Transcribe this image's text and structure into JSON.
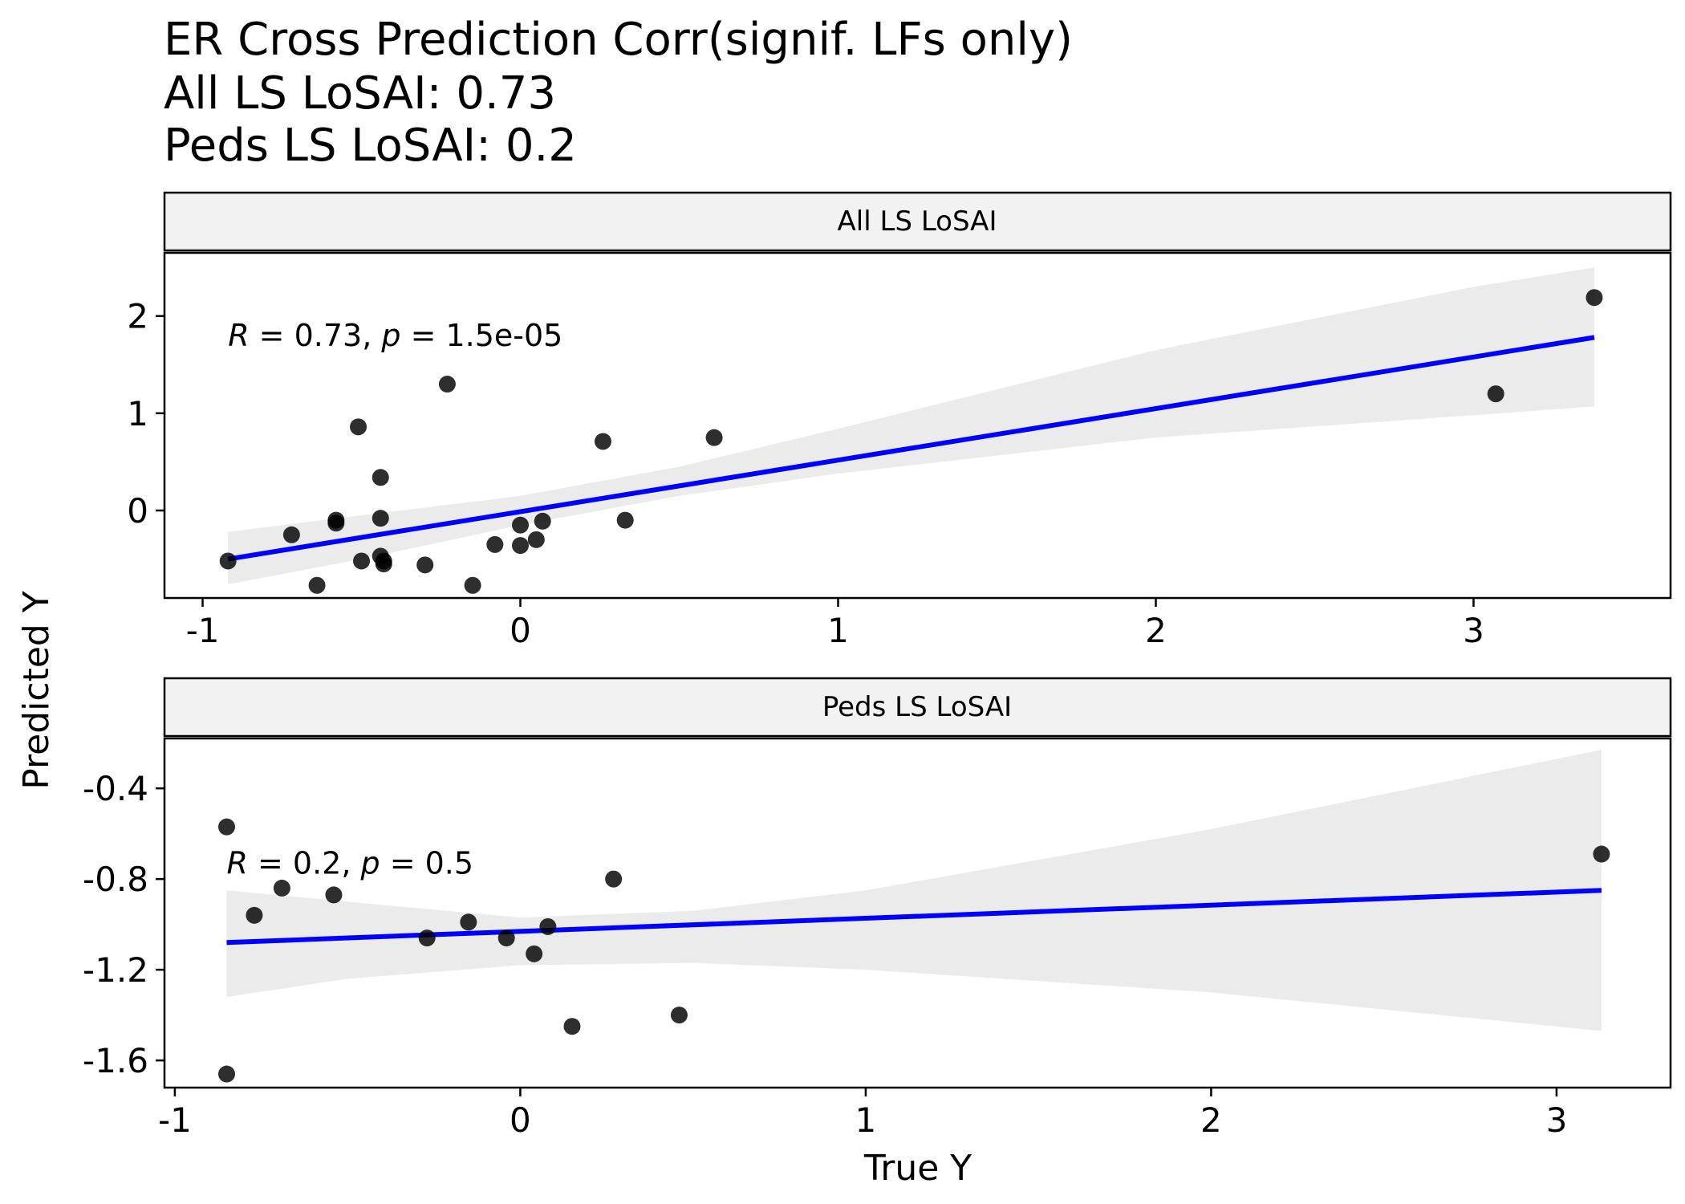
{
  "chart_data": {
    "type": "scatter",
    "title": [
      "ER Cross Prediction Corr(signif. LFs only)",
      "All LS LoSAI: 0.73",
      "Peds LS LoSAI: 0.2"
    ],
    "xlabel": "True Y",
    "ylabel": "Predicted Y",
    "colors": {
      "points": "#000000",
      "points_overlap": "#444444",
      "line": "#0000ff",
      "ribbon": "#ebebeb",
      "strip_fill": "#f2f2f2",
      "frame": "#000000"
    },
    "panels": [
      {
        "strip": "All LS LoSAI",
        "annotation": {
          "R": "0.73",
          "p": "1.5e-05",
          "x": -0.92,
          "y": 1.8
        },
        "xlim": [
          -1.12,
          3.62
        ],
        "ylim": [
          -0.9,
          2.65
        ],
        "xticks": [
          -1,
          0,
          1,
          2,
          3
        ],
        "xtick_labels": [
          "-1",
          "0",
          "1",
          "2",
          "3"
        ],
        "yticks": [
          0,
          1,
          2
        ],
        "ytick_labels": [
          "0",
          "1",
          "2"
        ],
        "points": [
          {
            "x": -0.92,
            "y": -0.52
          },
          {
            "x": -0.72,
            "y": -0.25
          },
          {
            "x": -0.64,
            "y": -0.77
          },
          {
            "x": -0.58,
            "y": -0.1
          },
          {
            "x": -0.58,
            "y": -0.13
          },
          {
            "x": -0.51,
            "y": 0.86
          },
          {
            "x": -0.5,
            "y": -0.52
          },
          {
            "x": -0.44,
            "y": 0.34
          },
          {
            "x": -0.44,
            "y": -0.08
          },
          {
            "x": -0.44,
            "y": -0.47
          },
          {
            "x": -0.43,
            "y": -0.52
          },
          {
            "x": -0.43,
            "y": -0.55
          },
          {
            "x": -0.3,
            "y": -0.56
          },
          {
            "x": -0.23,
            "y": 1.3
          },
          {
            "x": -0.15,
            "y": -0.77
          },
          {
            "x": -0.08,
            "y": -0.35
          },
          {
            "x": 0.0,
            "y": -0.15
          },
          {
            "x": 0.0,
            "y": -0.36
          },
          {
            "x": 0.05,
            "y": -0.3
          },
          {
            "x": 0.07,
            "y": -0.11
          },
          {
            "x": 0.26,
            "y": 0.71
          },
          {
            "x": 0.33,
            "y": -0.1
          },
          {
            "x": 0.61,
            "y": 0.75
          },
          {
            "x": 3.07,
            "y": 1.2
          },
          {
            "x": 3.38,
            "y": 2.19
          }
        ],
        "fit": {
          "x0": -0.92,
          "y0": -0.5,
          "x1": 3.38,
          "y1": 1.78
        },
        "ci_upper": [
          [
            -0.92,
            -0.22
          ],
          [
            -0.5,
            -0.05
          ],
          [
            0.0,
            0.15
          ],
          [
            0.5,
            0.45
          ],
          [
            1.0,
            0.84
          ],
          [
            2.0,
            1.65
          ],
          [
            3.0,
            2.3
          ],
          [
            3.38,
            2.5
          ]
        ],
        "ci_lower": [
          [
            -0.92,
            -0.76
          ],
          [
            -0.5,
            -0.5
          ],
          [
            0.0,
            -0.15
          ],
          [
            0.5,
            0.15
          ],
          [
            1.0,
            0.38
          ],
          [
            2.0,
            0.75
          ],
          [
            3.0,
            0.98
          ],
          [
            3.38,
            1.07
          ]
        ]
      },
      {
        "strip": "Peds LS LoSAI",
        "annotation": {
          "R": "0.2",
          "p": "0.5",
          "x": -0.85,
          "y": -0.73
        },
        "xlim": [
          -1.03,
          3.33
        ],
        "ylim": [
          -1.72,
          -0.18
        ],
        "xticks": [
          -1,
          0,
          1,
          2,
          3
        ],
        "xtick_labels": [
          "-1",
          "0",
          "1",
          "2",
          "3"
        ],
        "yticks": [
          -0.4,
          -0.8,
          -1.2,
          -1.6
        ],
        "ytick_labels": [
          "-0.4",
          "-0.8",
          "-1.2",
          "-1.6"
        ],
        "points": [
          {
            "x": -0.85,
            "y": -0.57
          },
          {
            "x": -0.85,
            "y": -1.66
          },
          {
            "x": -0.77,
            "y": -0.96
          },
          {
            "x": -0.69,
            "y": -0.84
          },
          {
            "x": -0.54,
            "y": -0.87
          },
          {
            "x": -0.27,
            "y": -1.06
          },
          {
            "x": -0.15,
            "y": -0.99
          },
          {
            "x": -0.04,
            "y": -1.06
          },
          {
            "x": 0.04,
            "y": -1.13
          },
          {
            "x": 0.08,
            "y": -1.01
          },
          {
            "x": 0.15,
            "y": -1.45
          },
          {
            "x": 0.27,
            "y": -0.8
          },
          {
            "x": 0.46,
            "y": -1.4
          },
          {
            "x": 3.13,
            "y": -0.69
          }
        ],
        "fit": {
          "x0": -0.85,
          "y0": -1.08,
          "x1": 3.13,
          "y1": -0.85
        },
        "ci_upper": [
          [
            -0.85,
            -0.85
          ],
          [
            -0.5,
            -0.9
          ],
          [
            0.0,
            -0.97
          ],
          [
            0.5,
            -0.94
          ],
          [
            1.0,
            -0.85
          ],
          [
            2.0,
            -0.58
          ],
          [
            3.13,
            -0.23
          ]
        ],
        "ci_lower": [
          [
            -0.85,
            -1.32
          ],
          [
            -0.5,
            -1.24
          ],
          [
            0.0,
            -1.18
          ],
          [
            0.5,
            -1.17
          ],
          [
            1.0,
            -1.2
          ],
          [
            2.0,
            -1.3
          ],
          [
            3.13,
            -1.47
          ]
        ]
      }
    ]
  }
}
